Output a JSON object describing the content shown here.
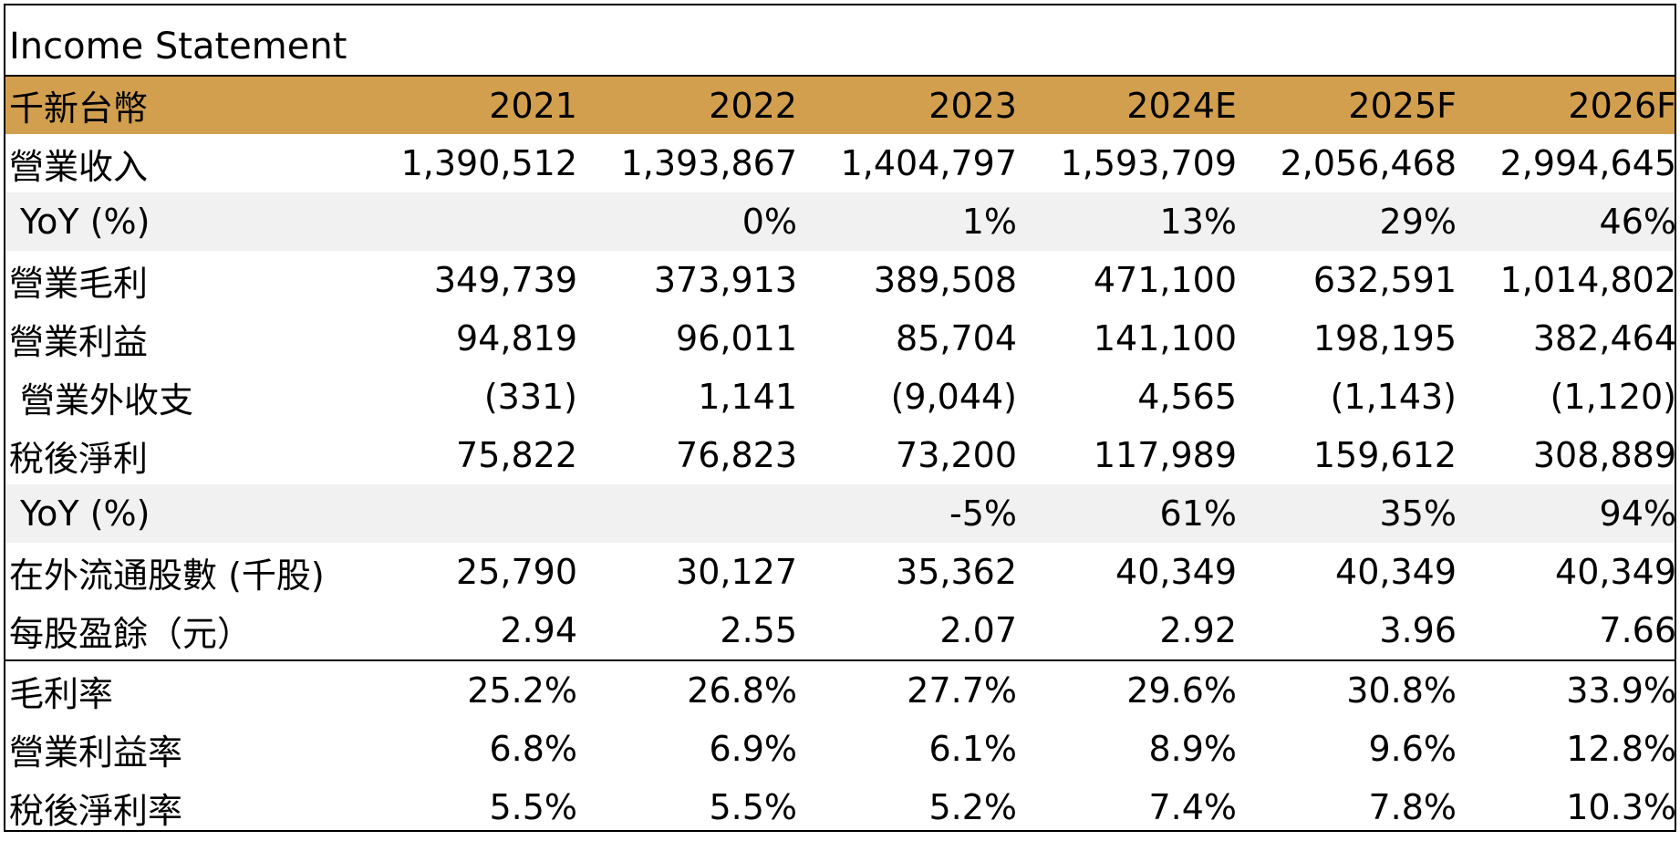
{
  "title": "Income Statement",
  "header": {
    "unit_label": "千新台幣",
    "years": [
      "2021",
      "2022",
      "2023",
      "2024E",
      "2025F",
      "2026F"
    ]
  },
  "rows": [
    {
      "label": "營業收入",
      "values": [
        "1,390,512",
        "1,393,867",
        "1,404,797",
        "1,593,709",
        "2,056,468",
        "2,994,645"
      ]
    },
    {
      "label": "YoY (%)",
      "values": [
        "",
        "0%",
        "1%",
        "13%",
        "29%",
        "46%"
      ]
    },
    {
      "label": "營業毛利",
      "values": [
        "349,739",
        "373,913",
        "389,508",
        "471,100",
        "632,591",
        "1,014,802"
      ]
    },
    {
      "label": "營業利益",
      "values": [
        "94,819",
        "96,011",
        "85,704",
        "141,100",
        "198,195",
        "382,464"
      ]
    },
    {
      "label": "營業外收支",
      "values": [
        "(331)",
        "1,141",
        "(9,044)",
        "4,565",
        "(1,143)",
        "(1,120)"
      ]
    },
    {
      "label": "稅後淨利",
      "values": [
        "75,822",
        "76,823",
        "73,200",
        "117,989",
        "159,612",
        "308,889"
      ]
    },
    {
      "label": "YoY (%)",
      "values": [
        "",
        "",
        "-5%",
        "61%",
        "35%",
        "94%"
      ]
    },
    {
      "label": "在外流通股數 (千股)",
      "values": [
        "25,790",
        "30,127",
        "35,362",
        "40,349",
        "40,349",
        "40,349"
      ]
    },
    {
      "label": "每股盈餘（元）",
      "values": [
        "2.94",
        "2.55",
        "2.07",
        "2.92",
        "3.96",
        "7.66"
      ]
    },
    {
      "label": "毛利率",
      "values": [
        "25.2%",
        "26.8%",
        "27.7%",
        "29.6%",
        "30.8%",
        "33.9%"
      ]
    },
    {
      "label": "營業利益率",
      "values": [
        "6.8%",
        "6.9%",
        "6.1%",
        "8.9%",
        "9.6%",
        "12.8%"
      ]
    },
    {
      "label": "稅後淨利率",
      "values": [
        "5.5%",
        "5.5%",
        "5.2%",
        "7.4%",
        "7.8%",
        "10.3%"
      ]
    }
  ],
  "colors": {
    "header_fill": "#d29f4f",
    "shaded_row_fill": "#f1f1f1",
    "border": "#000000"
  }
}
